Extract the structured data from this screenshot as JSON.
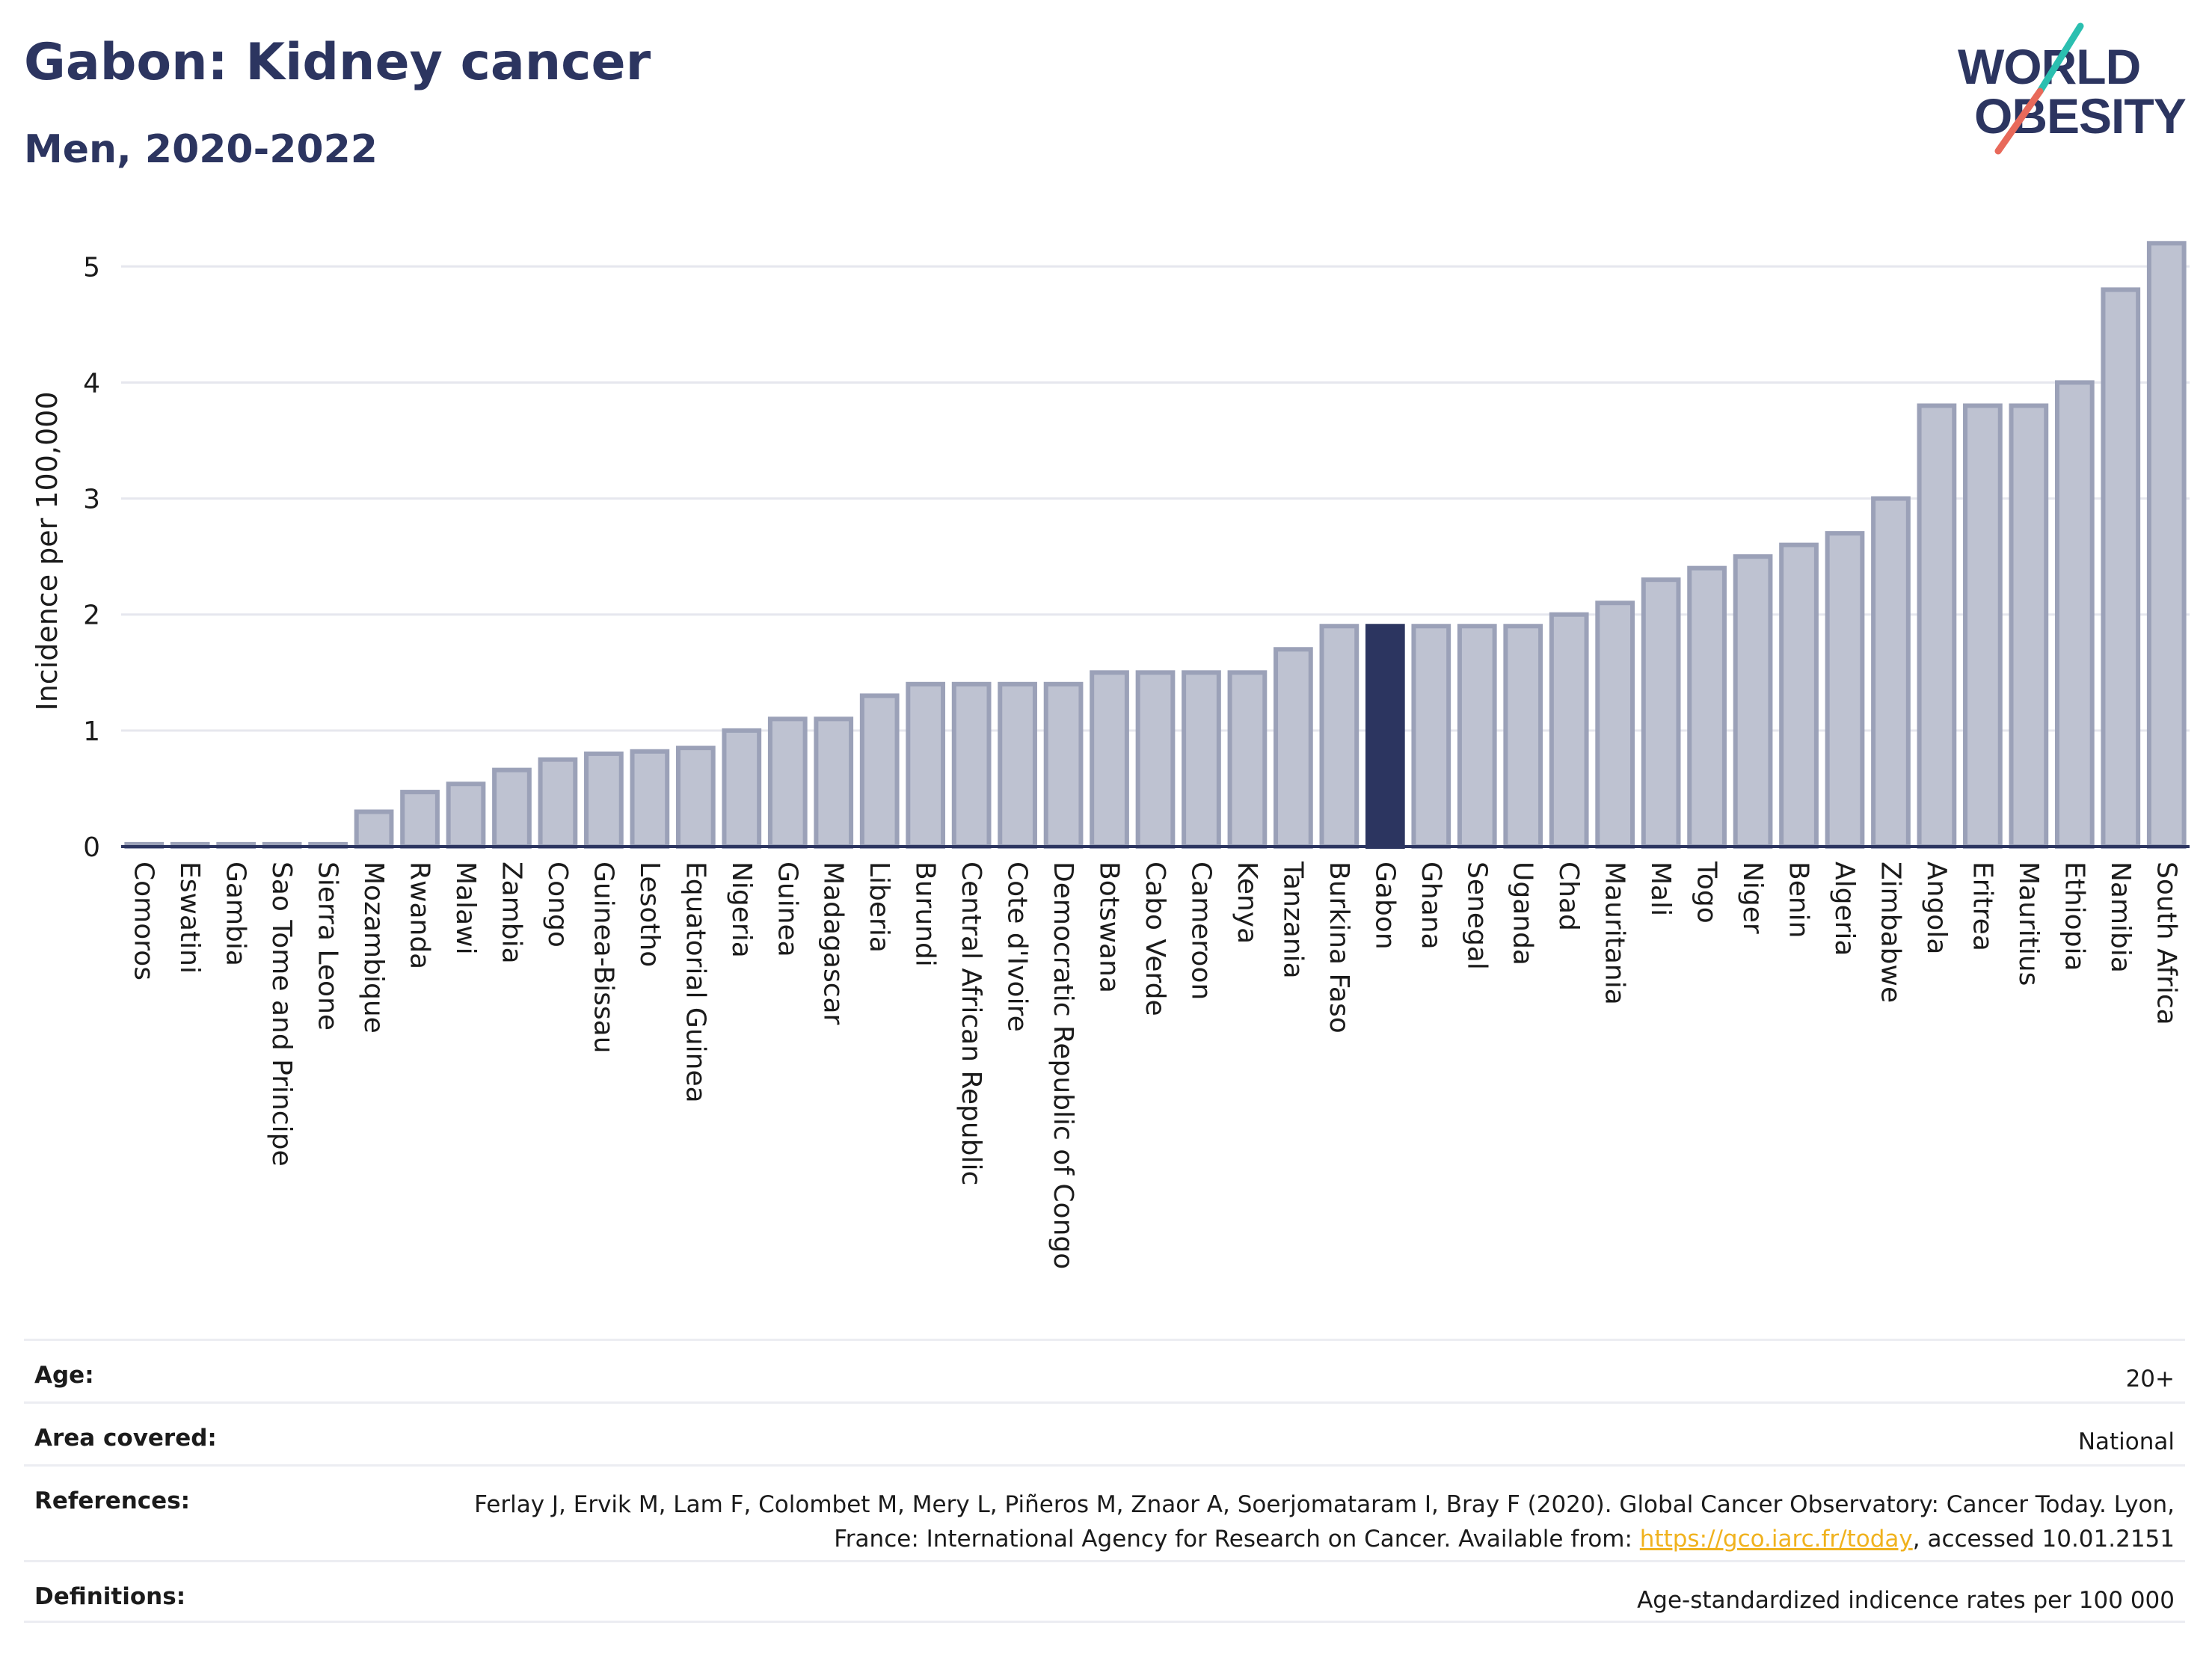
{
  "title": "Gabon: Kidney cancer",
  "subtitle": "Men, 2020-2022",
  "logo": {
    "line1": "WORLD",
    "line2": "OBESITY",
    "accent_teal": "#2bbfb0",
    "accent_coral": "#e8695a"
  },
  "colors": {
    "bar": "#bec2d1",
    "bar_stroke": "#9ba1b8",
    "highlight": "#2c3560",
    "grid": "#e6e7ee",
    "axis": "#2c3560"
  },
  "chart_data": {
    "type": "bar",
    "ylabel": "Incidence per 100,000",
    "xlabel": "",
    "ylim": [
      0,
      5.35
    ],
    "yticks": [
      0,
      1,
      2,
      3,
      4,
      5
    ],
    "grid": true,
    "highlight": "Gabon",
    "categories": [
      "Comoros",
      "Eswatini",
      "Gambia",
      "Sao Tome and Principe",
      "Sierra Leone",
      "Mozambique",
      "Rwanda",
      "Malawi",
      "Zambia",
      "Congo",
      "Guinea-Bissau",
      "Lesotho",
      "Equatorial Guinea",
      "Nigeria",
      "Guinea",
      "Madagascar",
      "Liberia",
      "Burundi",
      "Central African Republic",
      "Cote d'Ivoire",
      "Democratic Republic of Congo",
      "Botswana",
      "Cabo Verde",
      "Cameroon",
      "Kenya",
      "Tanzania",
      "Burkina Faso",
      "Gabon",
      "Ghana",
      "Senegal",
      "Uganda",
      "Chad",
      "Mauritania",
      "Mali",
      "Togo",
      "Niger",
      "Benin",
      "Algeria",
      "Zimbabwe",
      "Angola",
      "Eritrea",
      "Mauritius",
      "Ethiopia",
      "Namibia",
      "South Africa"
    ],
    "values": [
      0.02,
      0.02,
      0.02,
      0.02,
      0.02,
      0.3,
      0.47,
      0.54,
      0.66,
      0.75,
      0.8,
      0.82,
      0.85,
      1.0,
      1.1,
      1.1,
      1.3,
      1.4,
      1.4,
      1.4,
      1.4,
      1.5,
      1.5,
      1.5,
      1.5,
      1.7,
      1.9,
      1.9,
      1.9,
      1.9,
      1.9,
      2.0,
      2.1,
      2.3,
      2.4,
      2.5,
      2.6,
      2.7,
      3.0,
      3.8,
      3.8,
      3.8,
      4.0,
      4.8,
      5.2
    ]
  },
  "meta": {
    "age_label": "Age:",
    "age_value": "20+",
    "area_label": "Area covered:",
    "area_value": "National",
    "references_label": "References:",
    "references_text1": "Ferlay J, Ervik M, Lam F, Colombet M, Mery L, Piñeros M, Znaor A, Soerjomataram I, Bray F (2020). Global Cancer Observatory: Cancer Today. Lyon, France: International Agency for Research on Cancer. Available from: ",
    "references_link": "https://gco.iarc.fr/today",
    "references_text2": ", accessed 10.01.2151",
    "definitions_label": "Definitions:",
    "definitions_value": "Age-standardized indicence rates per 100 000"
  }
}
